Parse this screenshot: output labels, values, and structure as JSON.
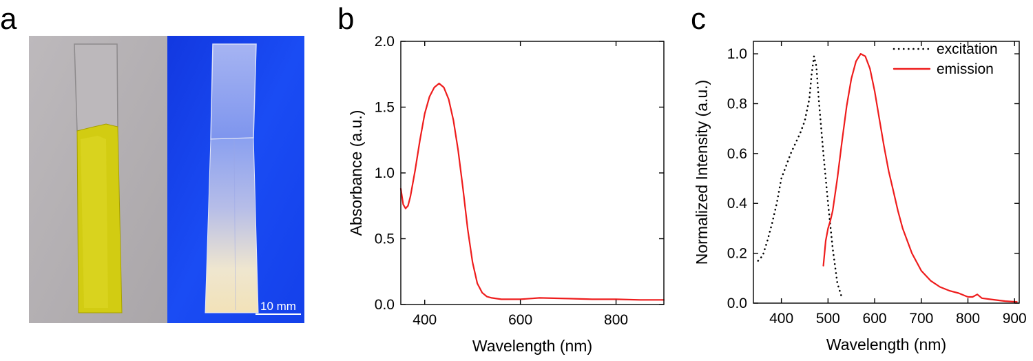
{
  "panels": {
    "a": "a",
    "b": "b",
    "c": "c"
  },
  "photo": {
    "scale_bar_label": "10 mm",
    "left_bg": "#b8b4b6",
    "right_bg": "#1746f0",
    "yellow": "#d4cd10"
  },
  "chart_data": [
    {
      "type": "line",
      "panel": "b",
      "title": "",
      "xlabel": "Wavelength (nm)",
      "ylabel": "Absorbance (a.u.)",
      "xlim": [
        350,
        900
      ],
      "ylim": [
        0,
        2.0
      ],
      "xticks": [
        400,
        600,
        800
      ],
      "yticks": [
        0.0,
        0.5,
        1.0,
        1.5,
        2.0
      ],
      "ytick_labels": [
        "0.0",
        "0.5",
        "1.0",
        "1.5",
        "2.0"
      ],
      "series": [
        {
          "name": "absorbance",
          "color": "#ee1c1c",
          "style": "solid",
          "x": [
            350,
            355,
            360,
            365,
            370,
            380,
            390,
            400,
            410,
            420,
            430,
            440,
            450,
            460,
            470,
            480,
            490,
            500,
            510,
            520,
            530,
            540,
            550,
            560,
            580,
            600,
            640,
            700,
            750,
            800,
            850,
            900
          ],
          "y": [
            0.88,
            0.76,
            0.73,
            0.75,
            0.82,
            1.02,
            1.25,
            1.45,
            1.58,
            1.65,
            1.68,
            1.65,
            1.56,
            1.4,
            1.17,
            0.88,
            0.57,
            0.32,
            0.16,
            0.09,
            0.06,
            0.05,
            0.045,
            0.04,
            0.04,
            0.04,
            0.05,
            0.045,
            0.04,
            0.04,
            0.035,
            0.035
          ]
        }
      ]
    },
    {
      "type": "line",
      "panel": "c",
      "title": "",
      "xlabel": "Wavelength (nm)",
      "ylabel": "Normalized Intensity (a.u.)",
      "xlim": [
        340,
        910
      ],
      "ylim": [
        0,
        1.05
      ],
      "xticks": [
        400,
        500,
        600,
        700,
        800,
        900
      ],
      "yticks": [
        0.0,
        0.2,
        0.4,
        0.6,
        0.8,
        1.0
      ],
      "ytick_labels": [
        "0.0",
        "0.2",
        "0.4",
        "0.6",
        "0.8",
        "1.0"
      ],
      "legend_position": "top-right",
      "series": [
        {
          "name": "excitation",
          "color": "#000000",
          "style": "dotted",
          "x": [
            350,
            360,
            370,
            380,
            390,
            400,
            410,
            420,
            430,
            440,
            450,
            460,
            465,
            470,
            475,
            480,
            490,
            500,
            510,
            520,
            530
          ],
          "y": [
            0.17,
            0.19,
            0.25,
            0.32,
            0.4,
            0.5,
            0.55,
            0.6,
            0.64,
            0.68,
            0.73,
            0.82,
            0.92,
            0.99,
            0.95,
            0.82,
            0.6,
            0.4,
            0.22,
            0.08,
            0.02
          ]
        },
        {
          "name": "emission",
          "color": "#ee1c1c",
          "style": "solid",
          "x": [
            490,
            495,
            500,
            505,
            510,
            520,
            530,
            540,
            550,
            560,
            570,
            580,
            590,
            600,
            610,
            620,
            630,
            640,
            650,
            660,
            680,
            700,
            720,
            740,
            760,
            780,
            800,
            810,
            820,
            830,
            850,
            880,
            905
          ],
          "y": [
            0.15,
            0.25,
            0.3,
            0.33,
            0.37,
            0.5,
            0.65,
            0.79,
            0.9,
            0.97,
            1.0,
            0.99,
            0.94,
            0.85,
            0.74,
            0.63,
            0.53,
            0.45,
            0.37,
            0.3,
            0.2,
            0.13,
            0.09,
            0.065,
            0.05,
            0.04,
            0.025,
            0.025,
            0.035,
            0.02,
            0.015,
            0.008,
            0.005
          ]
        }
      ]
    }
  ]
}
